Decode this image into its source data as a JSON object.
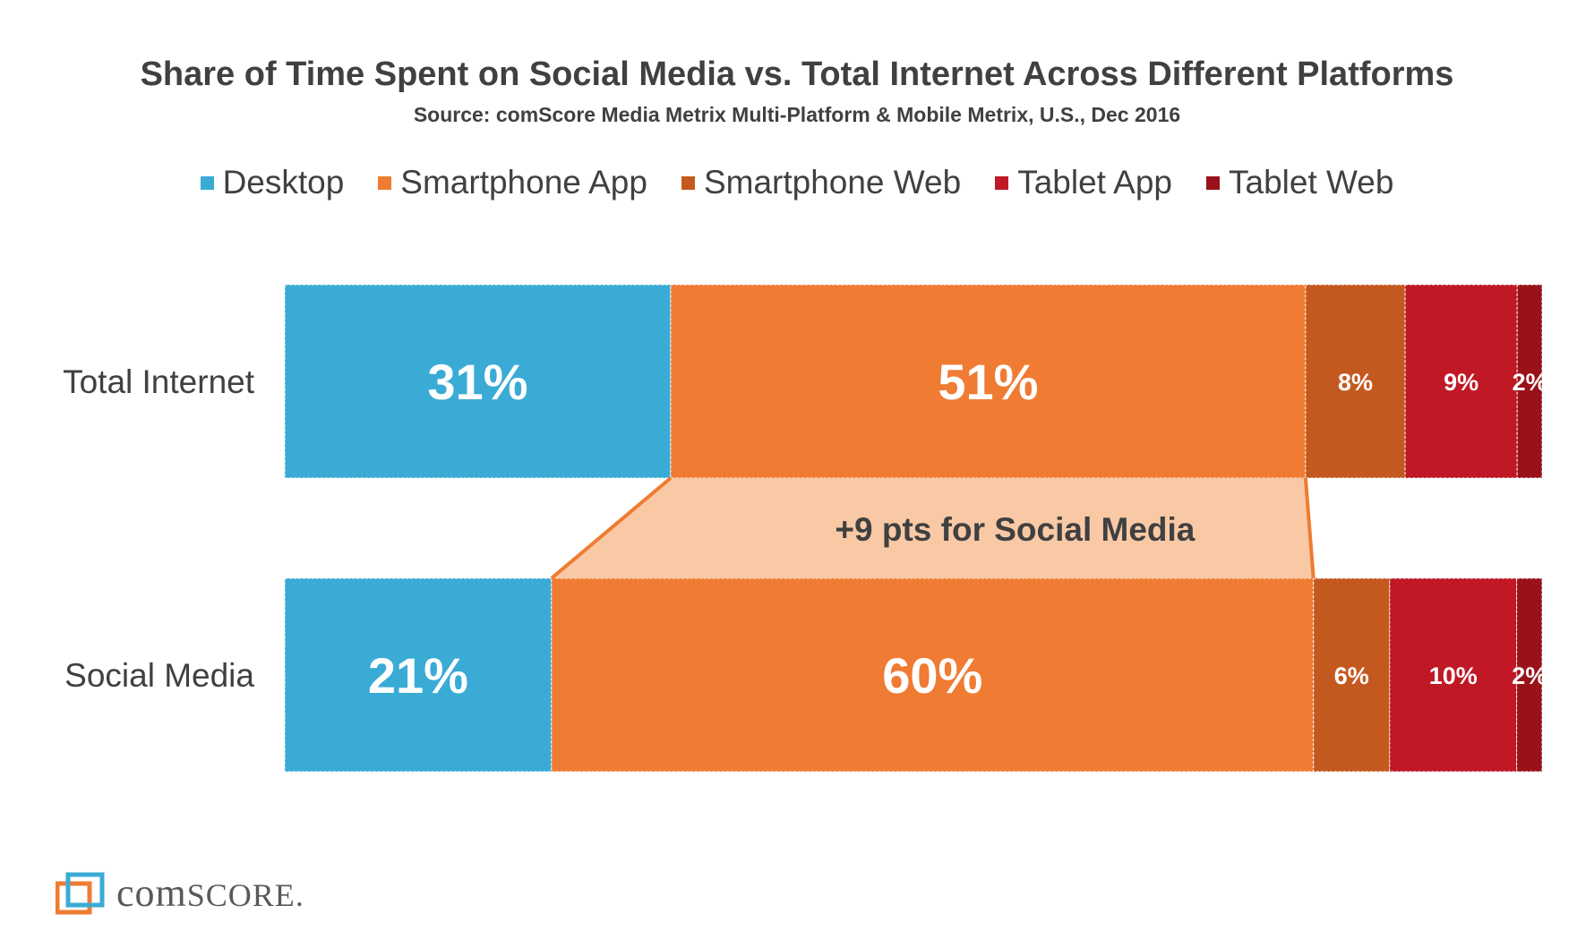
{
  "chart_data": {
    "type": "bar",
    "orientation": "horizontal",
    "stacked": true,
    "normalized": true,
    "title": "Share of Time Spent on Social Media vs. Total Internet Across Different Platforms",
    "subtitle": "Source: comScore Media Metrix Multi-Platform & Mobile Metrix, U.S., Dec 2016",
    "categories": [
      "Total Internet",
      "Social Media"
    ],
    "series": [
      {
        "name": "Desktop",
        "color": "#3aabd5",
        "values": [
          31,
          21
        ],
        "labels": [
          "31%",
          "21%"
        ]
      },
      {
        "name": "Smartphone App",
        "color": "#f07b32",
        "values": [
          51,
          60
        ],
        "labels": [
          "51%",
          "60%"
        ]
      },
      {
        "name": "Smartphone Web",
        "color": "#c4591f",
        "values": [
          8,
          6
        ],
        "labels": [
          "8%",
          "6%"
        ]
      },
      {
        "name": "Tablet App",
        "color": "#c01825",
        "values": [
          9,
          10
        ],
        "labels": [
          "9%",
          "10%"
        ]
      },
      {
        "name": "Tablet Web",
        "color": "#9a1219",
        "values": [
          2,
          2
        ],
        "labels": [
          "2%",
          "2%"
        ]
      }
    ],
    "xlim": [
      0,
      100
    ],
    "legend_position": "top",
    "grid": false,
    "annotation": {
      "text": "+9 pts for Social Media",
      "series": "Smartphone App",
      "fill": "#f9c9a6",
      "stroke": "#f07b32"
    }
  },
  "logo": {
    "text_prefix": "com",
    "text_suffix": "SCORE",
    "registered": "."
  }
}
